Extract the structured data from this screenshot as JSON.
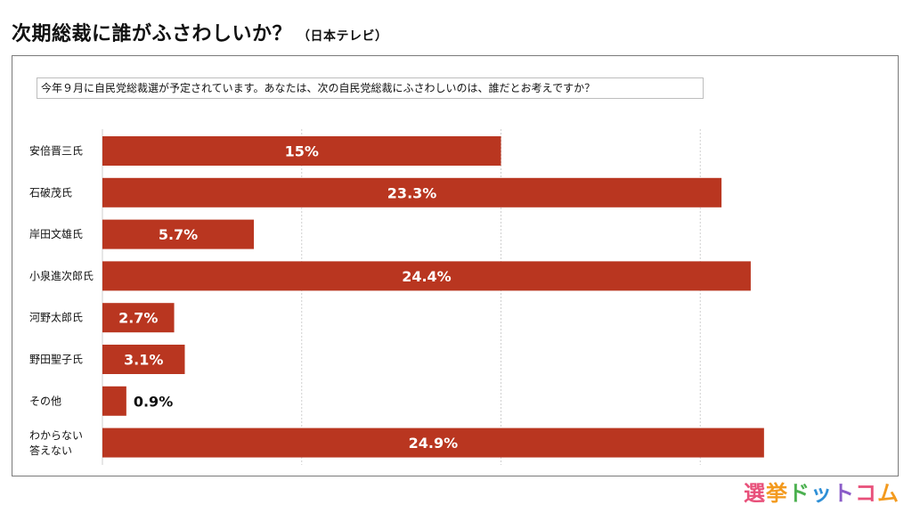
{
  "title": "次期総裁に誰がふさわしいか？",
  "source": "（日本テレビ）",
  "question": "今年９月に自民党総裁選が予定されています。あなたは、次の自民党総裁にふさわしいのは、誰だとお考えですか？",
  "colors": {
    "bar": "#b93620",
    "grid": "#cfcfcf"
  },
  "chart_data": {
    "type": "bar",
    "orientation": "horizontal",
    "categories": [
      "安倍晋三氏",
      "石破茂氏",
      "岸田文雄氏",
      "小泉進次郎氏",
      "河野太郎氏",
      "野田聖子氏",
      "その他",
      "わからない\n答えない"
    ],
    "values": [
      15,
      23.3,
      5.7,
      24.4,
      2.7,
      3.1,
      0.9,
      24.9
    ],
    "labels": [
      "15%",
      "23.3%",
      "5.7%",
      "24.4%",
      "2.7%",
      "3.1%",
      "0.9%",
      "24.9%"
    ],
    "xlim": [
      0,
      30
    ],
    "gridlines": [
      0,
      7.5,
      15,
      22.5,
      30
    ],
    "unit": "%"
  },
  "logo": {
    "parts": [
      "選",
      "挙",
      "ド",
      "ッ",
      "ト",
      "コ",
      "ム"
    ]
  }
}
